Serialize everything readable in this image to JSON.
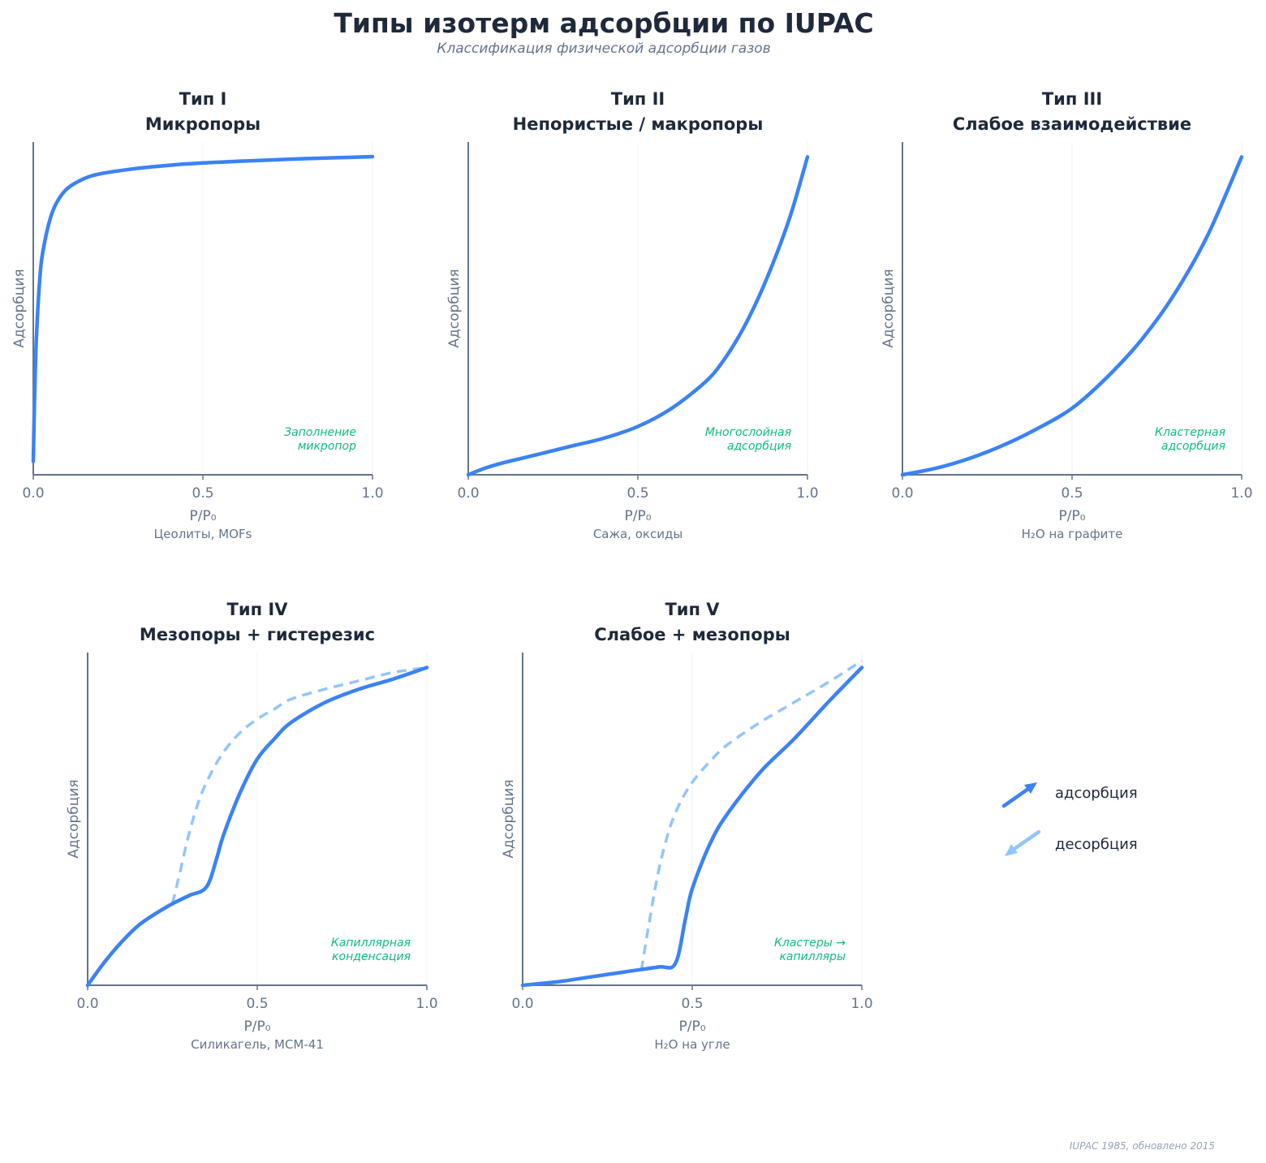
{
  "header": {
    "title": "Типы изотерм адсорбции по IUPAC",
    "subtitle": "Классификация физической адсорбции газов"
  },
  "legend": {
    "adsorption": "адсорбция",
    "desorption": "десорбция",
    "adsorption_color": "#3b82f6",
    "desorption_color": "#93c5fd"
  },
  "footer": "IUPAC 1985, обновлено 2015",
  "colors": {
    "adsorption": "#3b82f6",
    "desorption": "#93c5fd",
    "annotation": "#10b981",
    "axis": "#64748b",
    "title": "#1e293b"
  },
  "chart_data": [
    {
      "type": "line",
      "title": "Тип I",
      "subtitle": "Микропоры",
      "xlabel": "P/P₀",
      "ylabel": "Адсорбция",
      "example": "Цеолиты, MOFs",
      "annotation": [
        "Заполнение",
        "микропор"
      ],
      "xlim": [
        0,
        1
      ],
      "ylim": [
        0,
        1
      ],
      "xticks": [
        "0.0",
        "0.5",
        "1.0"
      ],
      "grid": "vertical",
      "series": [
        {
          "role": "adsorption",
          "x": [
            0.0,
            0.005,
            0.01,
            0.02,
            0.03,
            0.05,
            0.07,
            0.1,
            0.15,
            0.2,
            0.3,
            0.4,
            0.5,
            0.6,
            0.7,
            0.8,
            0.9,
            1.0
          ],
          "y": [
            0.04,
            0.28,
            0.43,
            0.6,
            0.68,
            0.77,
            0.82,
            0.86,
            0.89,
            0.905,
            0.92,
            0.93,
            0.937,
            0.942,
            0.946,
            0.95,
            0.953,
            0.956
          ]
        }
      ]
    },
    {
      "type": "line",
      "title": "Тип II",
      "subtitle": "Непористые / макропоры",
      "xlabel": "P/P₀",
      "ylabel": "Адсорбция",
      "example": "Сажа, оксиды",
      "annotation": [
        "Многослойная",
        "адсорбция"
      ],
      "xlim": [
        0,
        1
      ],
      "ylim": [
        0,
        1
      ],
      "xticks": [
        "0.0",
        "0.5",
        "1.0"
      ],
      "grid": "vertical",
      "series": [
        {
          "role": "adsorption",
          "x": [
            0.0,
            0.05,
            0.1,
            0.2,
            0.3,
            0.4,
            0.5,
            0.6,
            0.7,
            0.75,
            0.8,
            0.85,
            0.9,
            0.95,
            1.0
          ],
          "y": [
            0.0,
            0.02,
            0.035,
            0.06,
            0.085,
            0.11,
            0.145,
            0.2,
            0.28,
            0.34,
            0.42,
            0.52,
            0.64,
            0.78,
            0.955
          ]
        }
      ]
    },
    {
      "type": "line",
      "title": "Тип III",
      "subtitle": "Слабое взаимодействие",
      "xlabel": "P/P₀",
      "ylabel": "Адсорбция",
      "example": "H₂O на графите",
      "annotation": [
        "Кластерная",
        "адсорбция"
      ],
      "xlim": [
        0,
        1
      ],
      "ylim": [
        0,
        1
      ],
      "xticks": [
        "0.0",
        "0.5",
        "1.0"
      ],
      "grid": "vertical",
      "series": [
        {
          "role": "adsorption",
          "x": [
            0.0,
            0.1,
            0.2,
            0.3,
            0.4,
            0.5,
            0.6,
            0.7,
            0.8,
            0.9,
            1.0
          ],
          "y": [
            0.0,
            0.02,
            0.05,
            0.09,
            0.14,
            0.2,
            0.29,
            0.4,
            0.54,
            0.72,
            0.955
          ]
        }
      ]
    },
    {
      "type": "line",
      "title": "Тип IV",
      "subtitle": "Мезопоры + гистерезис",
      "xlabel": "P/P₀",
      "ylabel": "Адсорбция",
      "example": "Силикагель, MCM-41",
      "annotation": [
        "Капиллярная",
        "конденсация"
      ],
      "xlim": [
        0,
        1
      ],
      "ylim": [
        0,
        1
      ],
      "xticks": [
        "0.0",
        "0.5",
        "1.0"
      ],
      "grid": "vertical",
      "series": [
        {
          "role": "adsorption",
          "x": [
            0.0,
            0.05,
            0.1,
            0.15,
            0.2,
            0.25,
            0.3,
            0.35,
            0.38,
            0.4,
            0.45,
            0.5,
            0.55,
            0.6,
            0.7,
            0.8,
            0.9,
            1.0
          ],
          "y": [
            0.0,
            0.07,
            0.13,
            0.18,
            0.215,
            0.245,
            0.27,
            0.295,
            0.38,
            0.45,
            0.58,
            0.68,
            0.74,
            0.79,
            0.85,
            0.89,
            0.92,
            0.955
          ]
        },
        {
          "role": "desorption",
          "x": [
            0.25,
            0.27,
            0.3,
            0.33,
            0.36,
            0.4,
            0.45,
            0.5,
            0.55,
            0.6,
            0.7,
            0.8,
            0.9,
            1.0
          ],
          "y": [
            0.245,
            0.33,
            0.46,
            0.56,
            0.63,
            0.7,
            0.76,
            0.8,
            0.83,
            0.86,
            0.89,
            0.915,
            0.94,
            0.955
          ]
        }
      ]
    },
    {
      "type": "line",
      "title": "Тип V",
      "subtitle": "Слабое + мезопоры",
      "xlabel": "P/P₀",
      "ylabel": "Адсорбция",
      "example": "H₂O на угле",
      "annotation": [
        "Кластеры →",
        "капилляры"
      ],
      "xlim": [
        0,
        1
      ],
      "ylim": [
        0,
        1
      ],
      "xticks": [
        "0.0",
        "0.5",
        "1.0"
      ],
      "grid": "vertical",
      "series": [
        {
          "role": "adsorption",
          "x": [
            0.0,
            0.1,
            0.2,
            0.3,
            0.4,
            0.45,
            0.48,
            0.5,
            0.55,
            0.6,
            0.7,
            0.8,
            0.9,
            1.0
          ],
          "y": [
            0.0,
            0.01,
            0.025,
            0.04,
            0.055,
            0.065,
            0.2,
            0.29,
            0.42,
            0.51,
            0.64,
            0.74,
            0.85,
            0.955
          ]
        },
        {
          "role": "desorption",
          "x": [
            0.35,
            0.37,
            0.4,
            0.43,
            0.46,
            0.5,
            0.55,
            0.6,
            0.7,
            0.8,
            0.9,
            1.0
          ],
          "y": [
            0.045,
            0.17,
            0.34,
            0.46,
            0.54,
            0.61,
            0.67,
            0.72,
            0.79,
            0.85,
            0.91,
            0.975
          ]
        }
      ]
    }
  ]
}
